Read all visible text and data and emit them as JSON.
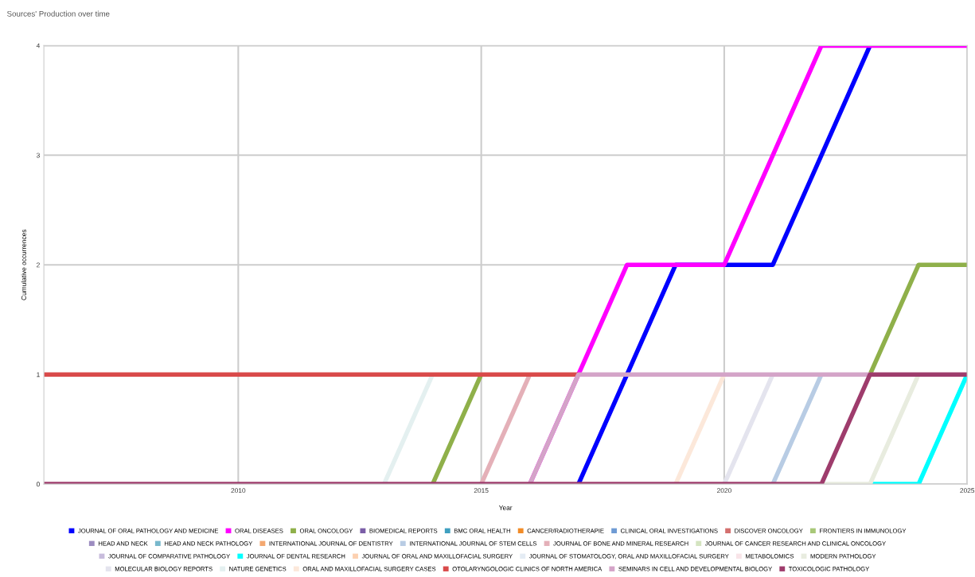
{
  "chart_data": {
    "type": "line",
    "title": "Sources' Production over time",
    "xlabel": "Year",
    "ylabel": "Cumulative occurrences",
    "x": [
      2006,
      2007,
      2008,
      2009,
      2010,
      2011,
      2012,
      2013,
      2014,
      2015,
      2016,
      2017,
      2018,
      2019,
      2020,
      2021,
      2022,
      2023,
      2024,
      2025
    ],
    "xlim": [
      2006,
      2025
    ],
    "xticks": [
      2010,
      2015,
      2020,
      2025
    ],
    "ylim": [
      0,
      4
    ],
    "yticks": [
      0,
      1,
      2,
      3,
      4
    ],
    "grid": true,
    "legend": "bottom",
    "marker": "none",
    "line_style": "solid",
    "series": [
      {
        "name": "JOURNAL OF ORAL PATHOLOGY AND MEDICINE",
        "color": "#0000ff",
        "values": [
          null,
          null,
          null,
          null,
          null,
          null,
          null,
          null,
          null,
          null,
          null,
          0,
          1,
          2,
          2,
          2,
          3,
          4,
          null,
          null
        ]
      },
      {
        "name": "ORAL DISEASES",
        "color": "#ff00ff",
        "values": [
          null,
          null,
          null,
          null,
          null,
          null,
          null,
          null,
          null,
          null,
          0,
          1,
          2,
          2,
          2,
          3,
          4,
          4,
          4,
          4
        ]
      },
      {
        "name": "ORAL ONCOLOGY",
        "color": "#8fb04a",
        "values": [
          null,
          null,
          null,
          null,
          null,
          null,
          null,
          null,
          0,
          1,
          null,
          null,
          null,
          null,
          null,
          null,
          null,
          1,
          2,
          2
        ]
      },
      {
        "name": "BIOMEDICAL REPORTS",
        "color": "#7b5ea7",
        "values": [
          null,
          null,
          null,
          null,
          null,
          null,
          null,
          null,
          null,
          null,
          null,
          null,
          null,
          null,
          null,
          null,
          null,
          null,
          null,
          null
        ]
      },
      {
        "name": "BMC ORAL HEALTH",
        "color": "#3fa0c0",
        "values": [
          null,
          null,
          null,
          null,
          null,
          null,
          null,
          null,
          null,
          null,
          null,
          null,
          null,
          null,
          null,
          null,
          null,
          null,
          null,
          null
        ]
      },
      {
        "name": "CANCER/RADIOTHERAPIE",
        "color": "#f28c28",
        "values": [
          null,
          null,
          null,
          null,
          null,
          null,
          null,
          null,
          null,
          null,
          null,
          null,
          null,
          null,
          null,
          null,
          null,
          null,
          null,
          null
        ]
      },
      {
        "name": "CLINICAL ORAL INVESTIGATIONS",
        "color": "#6f9bd4",
        "values": [
          null,
          null,
          null,
          null,
          null,
          null,
          null,
          null,
          null,
          null,
          null,
          null,
          null,
          null,
          null,
          null,
          null,
          null,
          null,
          null
        ]
      },
      {
        "name": "DISCOVER ONCOLOGY",
        "color": "#d4706f",
        "values": [
          null,
          null,
          null,
          null,
          null,
          null,
          null,
          null,
          null,
          null,
          null,
          null,
          null,
          null,
          null,
          null,
          null,
          null,
          null,
          null
        ]
      },
      {
        "name": "FRONTIERS IN IMMUNOLOGY",
        "color": "#a8c878",
        "values": [
          null,
          null,
          null,
          null,
          null,
          null,
          null,
          null,
          null,
          null,
          null,
          null,
          null,
          null,
          null,
          null,
          null,
          null,
          null,
          null
        ]
      },
      {
        "name": "HEAD AND NECK",
        "color": "#9c8cc0",
        "values": [
          null,
          null,
          null,
          null,
          null,
          null,
          null,
          null,
          null,
          null,
          null,
          null,
          null,
          null,
          null,
          null,
          null,
          null,
          null,
          null
        ]
      },
      {
        "name": "HEAD AND NECK PATHOLOGY",
        "color": "#78b8cc",
        "values": [
          null,
          null,
          null,
          null,
          null,
          null,
          null,
          null,
          null,
          null,
          null,
          null,
          null,
          null,
          null,
          null,
          null,
          null,
          null,
          null
        ]
      },
      {
        "name": "INTERNATIONAL JOURNAL OF DENTISTRY",
        "color": "#f4a870",
        "values": [
          null,
          null,
          null,
          null,
          null,
          null,
          null,
          null,
          null,
          null,
          null,
          null,
          null,
          null,
          null,
          null,
          null,
          null,
          null,
          null
        ]
      },
      {
        "name": "INTERNATIONAL JOURNAL OF STEM CELLS",
        "color": "#b8cce4",
        "values": [
          null,
          null,
          null,
          null,
          null,
          null,
          null,
          null,
          null,
          null,
          null,
          null,
          null,
          null,
          null,
          0,
          1,
          null,
          null,
          null
        ]
      },
      {
        "name": "JOURNAL OF BONE AND MINERAL RESEARCH",
        "color": "#e4b0b8",
        "values": [
          null,
          null,
          null,
          null,
          null,
          null,
          null,
          null,
          null,
          0,
          1,
          null,
          null,
          null,
          null,
          null,
          null,
          null,
          null,
          null
        ]
      },
      {
        "name": "JOURNAL OF CANCER RESEARCH AND CLINICAL ONCOLOGY",
        "color": "#d4e4c0",
        "values": [
          null,
          null,
          null,
          null,
          null,
          null,
          null,
          null,
          null,
          null,
          null,
          null,
          null,
          null,
          null,
          null,
          null,
          null,
          null,
          null
        ]
      },
      {
        "name": "JOURNAL OF COMPARATIVE PATHOLOGY",
        "color": "#c8bcdc",
        "values": [
          null,
          null,
          null,
          null,
          null,
          null,
          null,
          null,
          null,
          null,
          null,
          null,
          null,
          null,
          null,
          null,
          null,
          null,
          null,
          null
        ]
      },
      {
        "name": "JOURNAL OF DENTAL RESEARCH",
        "color": "#00ffff",
        "values": [
          null,
          null,
          null,
          null,
          null,
          null,
          null,
          null,
          null,
          null,
          null,
          null,
          null,
          null,
          null,
          null,
          null,
          0,
          0,
          1
        ]
      },
      {
        "name": "JOURNAL OF ORAL AND MAXILLOFACIAL SURGERY",
        "color": "#fcd0b0",
        "values": [
          null,
          null,
          null,
          null,
          null,
          null,
          null,
          null,
          null,
          null,
          null,
          null,
          null,
          null,
          null,
          null,
          null,
          null,
          null,
          null
        ]
      },
      {
        "name": "JOURNAL OF STOMATOLOGY, ORAL AND MAXILLOFACIAL SURGERY",
        "color": "#e4ecf4",
        "values": [
          null,
          null,
          null,
          null,
          null,
          null,
          null,
          null,
          null,
          null,
          null,
          null,
          null,
          null,
          null,
          null,
          null,
          null,
          null,
          null
        ]
      },
      {
        "name": "METABOLOMICS",
        "color": "#f8e4e8",
        "values": [
          null,
          null,
          null,
          null,
          null,
          null,
          null,
          null,
          null,
          null,
          null,
          null,
          null,
          null,
          null,
          null,
          null,
          null,
          null,
          null
        ]
      },
      {
        "name": "MODERN PATHOLOGY",
        "color": "#e8ecdf",
        "values": [
          null,
          null,
          null,
          null,
          null,
          null,
          null,
          null,
          null,
          null,
          null,
          null,
          null,
          null,
          null,
          null,
          0,
          0,
          1,
          null
        ]
      },
      {
        "name": "MOLECULAR BIOLOGY REPORTS",
        "color": "#e4e4ee",
        "values": [
          null,
          null,
          null,
          null,
          null,
          null,
          null,
          null,
          null,
          null,
          null,
          null,
          null,
          null,
          0,
          1,
          null,
          null,
          null,
          null
        ]
      },
      {
        "name": "NATURE GENETICS",
        "color": "#e4f0f0",
        "values": [
          null,
          null,
          null,
          null,
          null,
          null,
          null,
          0,
          1,
          null,
          null,
          null,
          null,
          null,
          null,
          null,
          null,
          null,
          null,
          null
        ]
      },
      {
        "name": "ORAL AND MAXILLOFACIAL SURGERY CASES",
        "color": "#fce8da",
        "values": [
          null,
          null,
          null,
          null,
          null,
          null,
          null,
          null,
          null,
          null,
          null,
          null,
          null,
          0,
          1,
          null,
          null,
          null,
          null,
          null
        ]
      },
      {
        "name": "OTOLARYNGOLOGIC CLINICS OF NORTH AMERICA",
        "color": "#d94a4a",
        "values": [
          1,
          1,
          1,
          1,
          1,
          1,
          1,
          1,
          1,
          1,
          1,
          1,
          null,
          null,
          null,
          null,
          null,
          null,
          null,
          null
        ]
      },
      {
        "name": "SEMINARS IN CELL AND DEVELOPMENTAL BIOLOGY",
        "color": "#d4a4c8",
        "values": [
          null,
          null,
          null,
          null,
          null,
          null,
          null,
          null,
          null,
          null,
          0,
          1,
          1,
          1,
          1,
          1,
          1,
          1,
          null,
          null
        ]
      },
      {
        "name": "TOXICOLOGIC PATHOLOGY",
        "color": "#9e3c6c",
        "values": [
          0,
          0,
          0,
          0,
          0,
          0,
          0,
          0,
          0,
          0,
          0,
          0,
          0,
          0,
          0,
          0,
          0,
          1,
          1,
          1
        ]
      }
    ]
  }
}
